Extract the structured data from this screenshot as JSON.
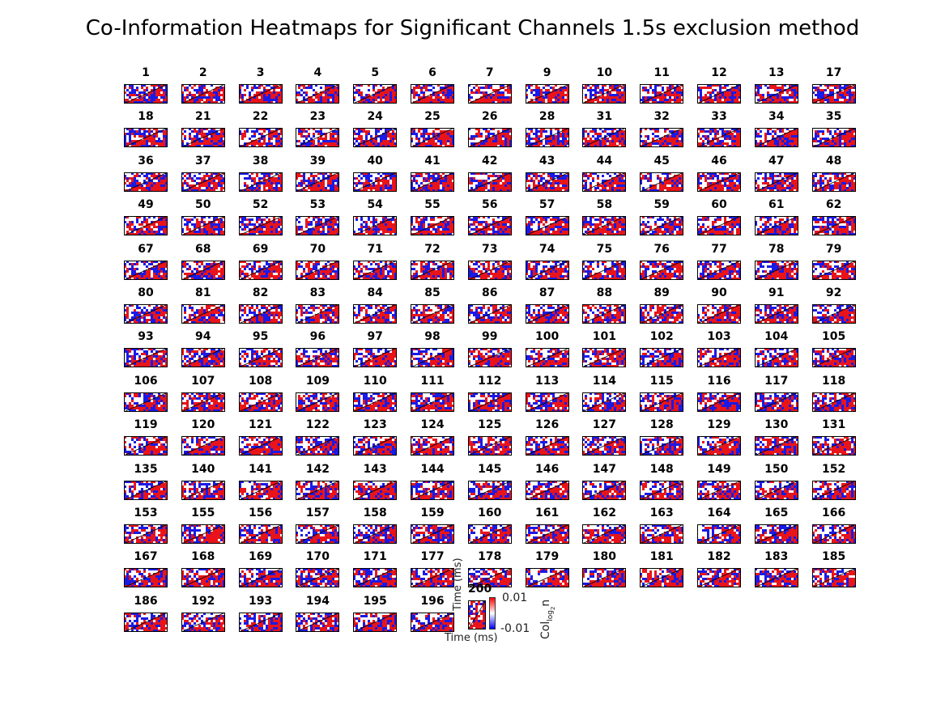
{
  "figure": {
    "title": "Co-Information Heatmaps for Significant Channels 1.5s exclusion method"
  },
  "chart_data": {
    "type": "heatmap",
    "title": "Co-Information Heatmaps for Significant Channels 1.5s exclusion method",
    "panels": [
      "1",
      "2",
      "3",
      "4",
      "5",
      "6",
      "7",
      "9",
      "10",
      "11",
      "12",
      "13",
      "17",
      "18",
      "21",
      "22",
      "23",
      "24",
      "25",
      "26",
      "28",
      "31",
      "32",
      "33",
      "34",
      "35",
      "36",
      "37",
      "38",
      "39",
      "40",
      "41",
      "42",
      "43",
      "44",
      "45",
      "46",
      "47",
      "48",
      "49",
      "50",
      "52",
      "53",
      "54",
      "55",
      "56",
      "57",
      "58",
      "59",
      "60",
      "61",
      "62",
      "67",
      "68",
      "69",
      "70",
      "71",
      "72",
      "73",
      "74",
      "75",
      "76",
      "77",
      "78",
      "79",
      "80",
      "81",
      "82",
      "83",
      "84",
      "85",
      "86",
      "87",
      "88",
      "89",
      "90",
      "91",
      "92",
      "93",
      "94",
      "95",
      "96",
      "97",
      "98",
      "99",
      "100",
      "101",
      "102",
      "103",
      "104",
      "105",
      "106",
      "107",
      "108",
      "109",
      "110",
      "111",
      "112",
      "113",
      "114",
      "115",
      "116",
      "117",
      "118",
      "119",
      "120",
      "121",
      "122",
      "123",
      "124",
      "125",
      "126",
      "127",
      "128",
      "129",
      "130",
      "131",
      "135",
      "140",
      "141",
      "142",
      "143",
      "144",
      "145",
      "146",
      "147",
      "148",
      "149",
      "150",
      "152",
      "153",
      "155",
      "156",
      "157",
      "158",
      "159",
      "160",
      "161",
      "162",
      "163",
      "164",
      "165",
      "166",
      "167",
      "168",
      "169",
      "170",
      "171",
      "177",
      "178",
      "179",
      "180",
      "181",
      "182",
      "183",
      "185",
      "186",
      "192",
      "193",
      "194",
      "195",
      "196",
      "200"
    ],
    "xlabel": "Time (ms)",
    "ylabel": "Time (ms)",
    "colorbar": {
      "label": "Col",
      "label_sub": "log",
      "label_sub2": "2",
      "label_tail": "n",
      "max_label": "0.01",
      "min_label": "-0.01",
      "clim": [
        -0.01,
        0.01
      ],
      "colormap": [
        "#0000ff",
        "#ffffff",
        "#ff0000"
      ]
    },
    "grid": false
  }
}
